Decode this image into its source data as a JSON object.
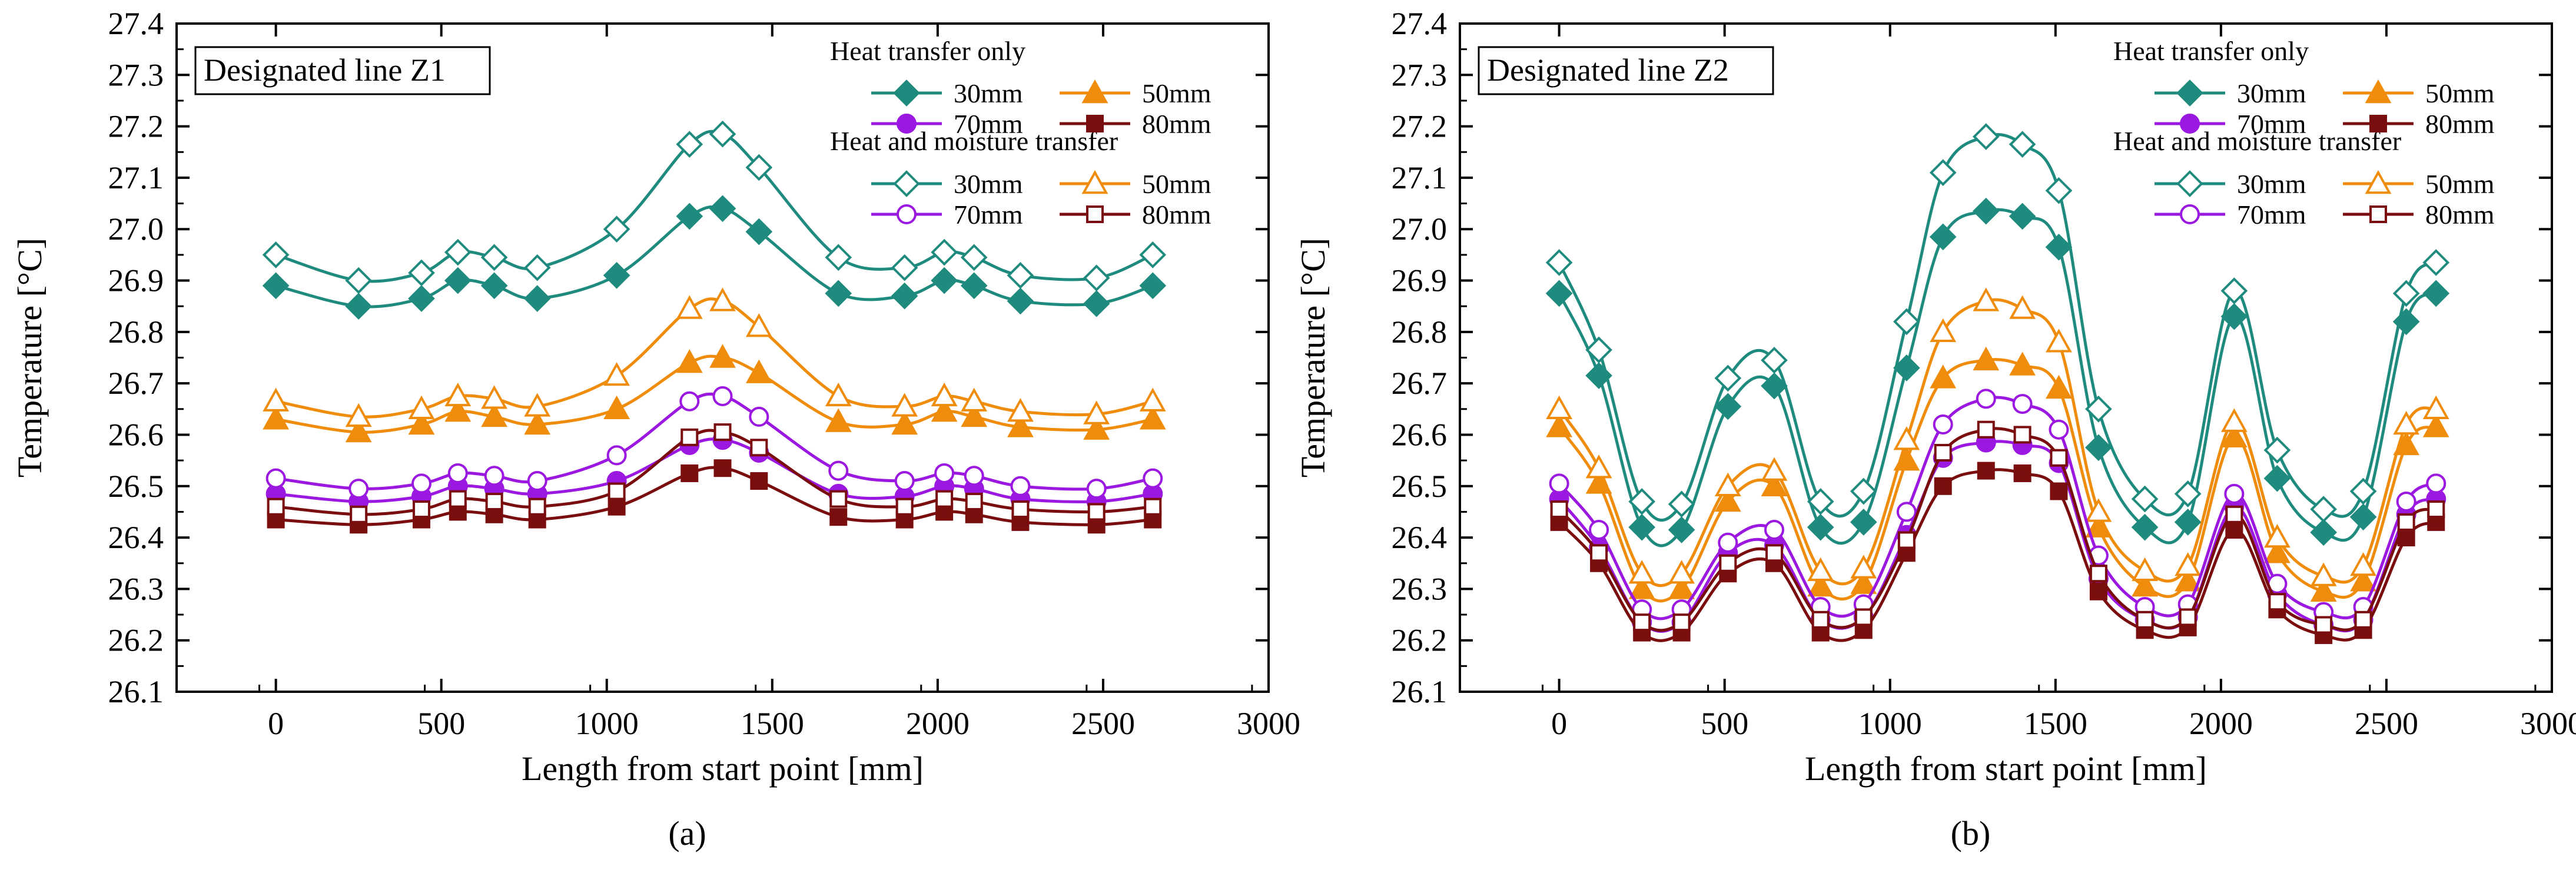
{
  "chart_data": [
    {
      "panel": "a",
      "panel_label": "(a)",
      "type": "line",
      "annotation": "Designated line Z1",
      "xlabel": "Length from start point [mm]",
      "ylabel": "Temperature [°C]",
      "xlim": [
        -300,
        3000
      ],
      "ylim": [
        26.1,
        27.4
      ],
      "xticks": [
        0,
        500,
        1000,
        1500,
        2000,
        2500,
        3000
      ],
      "yticks": [
        26.1,
        26.2,
        26.3,
        26.4,
        26.5,
        26.6,
        26.7,
        26.8,
        26.9,
        27.0,
        27.1,
        27.2,
        27.3,
        27.4
      ],
      "legend": {
        "group1_title": "Heat transfer only",
        "group2_title": "Heat and moisture transfer",
        "labels": [
          "30mm",
          "50mm",
          "70mm",
          "80mm"
        ]
      },
      "x": [
        0,
        250,
        440,
        550,
        660,
        790,
        1030,
        1250,
        1350,
        1460,
        1700,
        1900,
        2020,
        2110,
        2250,
        2480,
        2650
      ],
      "series": [
        {
          "name": "30mm",
          "group": "Heat transfer only",
          "marker": "diamond",
          "filled": true,
          "color": "#1f8b7e",
          "values": [
            26.89,
            26.85,
            26.865,
            26.9,
            26.89,
            26.865,
            26.91,
            27.025,
            27.04,
            26.995,
            26.875,
            26.87,
            26.9,
            26.89,
            26.86,
            26.855,
            26.89
          ]
        },
        {
          "name": "50mm",
          "group": "Heat transfer only",
          "marker": "triangle",
          "filled": true,
          "color": "#f08c0c",
          "values": [
            26.63,
            26.605,
            26.62,
            26.645,
            26.635,
            26.62,
            26.65,
            26.74,
            26.75,
            26.72,
            26.625,
            26.62,
            26.645,
            26.635,
            26.615,
            26.61,
            26.63
          ]
        },
        {
          "name": "70mm",
          "group": "Heat transfer only",
          "marker": "circle",
          "filled": true,
          "color": "#9b18e0",
          "values": [
            26.485,
            26.47,
            26.48,
            26.5,
            26.495,
            26.485,
            26.51,
            26.58,
            26.59,
            26.565,
            26.485,
            26.48,
            26.5,
            26.495,
            26.475,
            26.47,
            26.485
          ]
        },
        {
          "name": "80mm",
          "group": "Heat transfer only",
          "marker": "square",
          "filled": true,
          "color": "#7a0d0d",
          "values": [
            26.435,
            26.425,
            26.435,
            26.45,
            26.445,
            26.435,
            26.46,
            26.525,
            26.535,
            26.51,
            26.44,
            26.435,
            26.45,
            26.445,
            26.43,
            26.425,
            26.435
          ]
        },
        {
          "name": "30mm",
          "group": "Heat and moisture transfer",
          "marker": "diamond",
          "filled": false,
          "color": "#1f8b7e",
          "values": [
            26.95,
            26.9,
            26.915,
            26.955,
            26.945,
            26.925,
            27.0,
            27.165,
            27.185,
            27.12,
            26.945,
            26.925,
            26.955,
            26.945,
            26.91,
            26.905,
            26.95
          ]
        },
        {
          "name": "50mm",
          "group": "Heat and moisture transfer",
          "marker": "triangle",
          "filled": false,
          "color": "#f08c0c",
          "values": [
            26.665,
            26.635,
            26.65,
            26.675,
            26.67,
            26.655,
            26.715,
            26.845,
            26.86,
            26.81,
            26.675,
            26.655,
            26.675,
            26.665,
            26.645,
            26.64,
            26.665
          ]
        },
        {
          "name": "70mm",
          "group": "Heat and moisture transfer",
          "marker": "circle",
          "filled": false,
          "color": "#9b18e0",
          "values": [
            26.515,
            26.495,
            26.505,
            26.525,
            26.52,
            26.51,
            26.56,
            26.665,
            26.675,
            26.635,
            26.53,
            26.51,
            26.525,
            26.52,
            26.5,
            26.495,
            26.515
          ]
        },
        {
          "name": "80mm",
          "group": "Heat and moisture transfer",
          "marker": "square",
          "filled": false,
          "color": "#7a0d0d",
          "values": [
            26.46,
            26.445,
            26.455,
            26.475,
            26.47,
            26.46,
            26.49,
            26.595,
            26.605,
            26.575,
            26.475,
            26.46,
            26.475,
            26.47,
            26.455,
            26.45,
            26.46
          ]
        }
      ]
    },
    {
      "panel": "b",
      "panel_label": "(b)",
      "type": "line",
      "annotation": "Designated line Z2",
      "xlabel": "Length from start point [mm]",
      "ylabel": "Temperature [°C]",
      "xlim": [
        -300,
        3000
      ],
      "ylim": [
        26.1,
        27.4
      ],
      "xticks": [
        0,
        500,
        1000,
        1500,
        2000,
        2500,
        3000
      ],
      "yticks": [
        26.1,
        26.2,
        26.3,
        26.4,
        26.5,
        26.6,
        26.7,
        26.8,
        26.9,
        27.0,
        27.1,
        27.2,
        27.3,
        27.4
      ],
      "legend": {
        "group1_title": "Heat transfer only",
        "group2_title": "Heat and moisture transfer",
        "labels": [
          "30mm",
          "50mm",
          "70mm",
          "80mm"
        ]
      },
      "x": [
        0,
        120,
        250,
        370,
        510,
        650,
        790,
        920,
        1050,
        1160,
        1290,
        1400,
        1510,
        1630,
        1770,
        1900,
        2040,
        2170,
        2310,
        2430,
        2560,
        2650
      ],
      "series": [
        {
          "name": "30mm",
          "group": "Heat transfer only",
          "marker": "diamond",
          "filled": true,
          "color": "#1f8b7e",
          "values": [
            26.875,
            26.715,
            26.42,
            26.415,
            26.655,
            26.695,
            26.42,
            26.43,
            26.73,
            26.985,
            27.035,
            27.025,
            26.965,
            26.575,
            26.42,
            26.43,
            26.83,
            26.515,
            26.41,
            26.44,
            26.82,
            26.875
          ]
        },
        {
          "name": "50mm",
          "group": "Heat transfer only",
          "marker": "triangle",
          "filled": true,
          "color": "#f08c0c",
          "values": [
            26.615,
            26.505,
            26.3,
            26.3,
            26.47,
            26.5,
            26.305,
            26.31,
            26.55,
            26.71,
            26.745,
            26.735,
            26.69,
            26.42,
            26.305,
            26.315,
            26.595,
            26.37,
            26.295,
            26.315,
            26.58,
            26.615
          ]
        },
        {
          "name": "70mm",
          "group": "Heat transfer only",
          "marker": "circle",
          "filled": true,
          "color": "#9b18e0",
          "values": [
            26.475,
            26.38,
            26.235,
            26.235,
            26.37,
            26.385,
            26.24,
            26.245,
            26.405,
            26.555,
            26.585,
            26.58,
            26.545,
            26.32,
            26.24,
            26.245,
            26.46,
            26.29,
            26.23,
            26.24,
            26.445,
            26.475
          ]
        },
        {
          "name": "80mm",
          "group": "Heat transfer only",
          "marker": "square",
          "filled": true,
          "color": "#7a0d0d",
          "values": [
            26.43,
            26.35,
            26.215,
            26.215,
            26.33,
            26.35,
            26.215,
            26.22,
            26.37,
            26.5,
            26.53,
            26.525,
            26.49,
            26.295,
            26.22,
            26.225,
            26.415,
            26.26,
            26.21,
            26.22,
            26.4,
            26.43
          ]
        },
        {
          "name": "30mm",
          "group": "Heat and moisture transfer",
          "marker": "diamond",
          "filled": false,
          "color": "#1f8b7e",
          "values": [
            26.935,
            26.765,
            26.47,
            26.465,
            26.71,
            26.745,
            26.47,
            26.49,
            26.82,
            27.11,
            27.18,
            27.165,
            27.075,
            26.65,
            26.475,
            26.485,
            26.88,
            26.57,
            26.455,
            26.49,
            26.875,
            26.935
          ]
        },
        {
          "name": "50mm",
          "group": "Heat and moisture transfer",
          "marker": "triangle",
          "filled": false,
          "color": "#f08c0c",
          "values": [
            26.65,
            26.535,
            26.33,
            26.33,
            26.5,
            26.53,
            26.335,
            26.34,
            26.59,
            26.8,
            26.86,
            26.845,
            26.78,
            26.45,
            26.335,
            26.345,
            26.625,
            26.4,
            26.325,
            26.345,
            26.62,
            26.65
          ]
        },
        {
          "name": "70mm",
          "group": "Heat and moisture transfer",
          "marker": "circle",
          "filled": false,
          "color": "#9b18e0",
          "values": [
            26.505,
            26.415,
            26.26,
            26.26,
            26.39,
            26.415,
            26.265,
            26.27,
            26.45,
            26.62,
            26.67,
            26.66,
            26.61,
            26.365,
            26.265,
            26.27,
            26.485,
            26.31,
            26.255,
            26.265,
            26.47,
            26.505
          ]
        },
        {
          "name": "80mm",
          "group": "Heat and moisture transfer",
          "marker": "square",
          "filled": false,
          "color": "#7a0d0d",
          "values": [
            26.455,
            26.37,
            26.235,
            26.235,
            26.35,
            26.37,
            26.24,
            26.245,
            26.395,
            26.565,
            26.61,
            26.6,
            26.555,
            26.33,
            26.24,
            26.245,
            26.445,
            26.275,
            26.23,
            26.24,
            26.43,
            26.455
          ]
        }
      ]
    }
  ]
}
